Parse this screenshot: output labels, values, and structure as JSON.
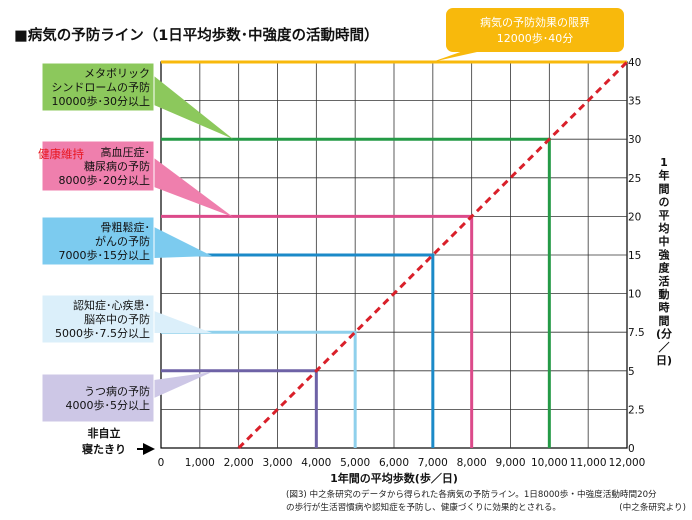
{
  "title": "■病気の予防ライン（1日平均歩数･中強度の活動時間）",
  "limit_box": {
    "line1": "病気の予防効果の限界",
    "line2": "12000歩･40分",
    "color": "#f8b90c"
  },
  "x_axis": {
    "label": "1年間の平均歩数(歩／日)",
    "ticks": [
      "0",
      "1,000",
      "2,000",
      "3,000",
      "4,000",
      "5,000",
      "6,000",
      "7,000",
      "8,000",
      "9,000",
      "10,000",
      "11,000",
      "12,000"
    ]
  },
  "y_axis": {
    "label_chars": [
      "1",
      "年",
      "間",
      "の",
      "平",
      "均",
      "中",
      "強",
      "度",
      "活",
      "動",
      "時",
      "間",
      "(分",
      "／",
      "日)"
    ],
    "ticks": [
      "0",
      "2.5",
      "5",
      "7.5",
      "10",
      "15",
      "20",
      "25",
      "30",
      "35",
      "40"
    ]
  },
  "sedentary": {
    "line1": "非自立",
    "line2": "寝たきり"
  },
  "health_label": "健康維持",
  "caption": {
    "line1": "(図3) 中之条研究のデータから得られた各病気の予防ライン。1日8000歩・中強度活動時間20分",
    "line2": "の歩行が生活習慣病や認知症を予防し、健康づくりに効果的とされる。",
    "source": "(中之条研究より)"
  },
  "chart_data": {
    "type": "line",
    "title": "■病気の予防ライン（1日平均歩数･中強度の活動時間）",
    "xlabel": "1年間の平均歩数(歩／日)",
    "ylabel": "1年間の平均中強度活動時間(分／日)",
    "xlim": [
      0,
      12000
    ],
    "ylim": [
      0,
      40
    ],
    "x_ticks": [
      0,
      1000,
      2000,
      3000,
      4000,
      5000,
      6000,
      7000,
      8000,
      9000,
      10000,
      11000,
      12000
    ],
    "y_ticks": [
      0,
      2.5,
      5,
      7.5,
      10,
      15,
      20,
      25,
      30,
      35,
      40
    ],
    "grid": true,
    "diagonal": {
      "color": "#d9202a",
      "points": [
        [
          2000,
          0
        ],
        [
          12000,
          40
        ]
      ]
    },
    "series": [
      {
        "name": "メタボリックシンドロームの予防",
        "label_lines": [
          "メタボリック",
          "シンドロームの予防",
          "10000歩･30分以上"
        ],
        "steps": 10000,
        "minutes": 30,
        "color": "#249a46",
        "box_color": "#8cc85c"
      },
      {
        "name": "高血圧症･糖尿病の予防",
        "label_lines": [
          "高血圧症･",
          "糖尿病の予防",
          "8000歩･20分以上"
        ],
        "steps": 8000,
        "minutes": 20,
        "color": "#dc4a8a",
        "box_color": "#ef7fad"
      },
      {
        "name": "骨粗鬆症･がんの予防",
        "label_lines": [
          "骨粗鬆症･",
          "がんの予防",
          "7000歩･15分以上"
        ],
        "steps": 7000,
        "minutes": 15,
        "color": "#1b8ac8",
        "box_color": "#7ccbef"
      },
      {
        "name": "認知症･心疾患･脳卒中の予防",
        "label_lines": [
          "認知症･心疾患･",
          "脳卒中の予防",
          "5000歩･7.5分以上"
        ],
        "steps": 5000,
        "minutes": 7.5,
        "color": "#8fd0ec",
        "box_color": "#dbeffa"
      },
      {
        "name": "うつ病の予防",
        "label_lines": [
          "うつ病の予防",
          "4000歩･5分以上"
        ],
        "steps": 4000,
        "minutes": 5,
        "color": "#6e62a6",
        "box_color": "#cdc7e6"
      },
      {
        "name": "病気の予防効果の限界",
        "label_lines": [],
        "steps": 12000,
        "minutes": 40,
        "color": "#f8b90c",
        "box_color": "#f8b90c"
      }
    ]
  }
}
